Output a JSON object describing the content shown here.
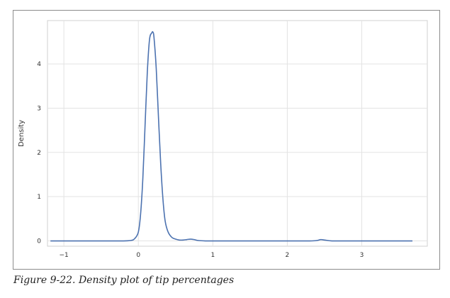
{
  "caption": "Figure 9-22. Density plot of tip percentages",
  "chart_data": {
    "type": "line",
    "title": "",
    "xlabel": "",
    "ylabel": "Density",
    "xlim": [
      -1.22,
      3.88
    ],
    "ylim": [
      -0.12,
      4.98
    ],
    "xticks": [
      -1,
      0,
      1,
      2,
      3
    ],
    "xtick_labels": [
      "−1",
      "0",
      "1",
      "2",
      "3"
    ],
    "yticks": [
      0,
      1,
      2,
      3,
      4
    ],
    "ytick_labels": [
      "0",
      "1",
      "2",
      "3",
      "4"
    ],
    "grid": true,
    "line_color": "#4c72b0",
    "series": [
      {
        "x": [
          -1.18,
          -0.6,
          -0.2,
          -0.1,
          -0.05,
          0.0,
          0.03,
          0.06,
          0.09,
          0.12,
          0.15,
          0.18,
          0.195,
          0.21,
          0.24,
          0.27,
          0.3,
          0.33,
          0.36,
          0.4,
          0.45,
          0.5,
          0.55,
          0.6,
          0.65,
          0.7,
          0.75,
          0.8,
          0.9,
          1.0,
          1.5,
          2.0,
          2.3,
          2.4,
          2.45,
          2.5,
          2.6,
          2.8,
          3.2,
          3.68
        ],
        "y": [
          0.0,
          0.0,
          0.0,
          0.01,
          0.05,
          0.2,
          0.6,
          1.4,
          2.6,
          3.8,
          4.55,
          4.7,
          4.72,
          4.6,
          3.9,
          2.8,
          1.75,
          0.95,
          0.45,
          0.2,
          0.08,
          0.04,
          0.02,
          0.02,
          0.03,
          0.04,
          0.03,
          0.01,
          0.0,
          0.0,
          0.0,
          0.0,
          0.0,
          0.01,
          0.03,
          0.02,
          0.0,
          0.0,
          0.0,
          0.0
        ]
      }
    ]
  }
}
